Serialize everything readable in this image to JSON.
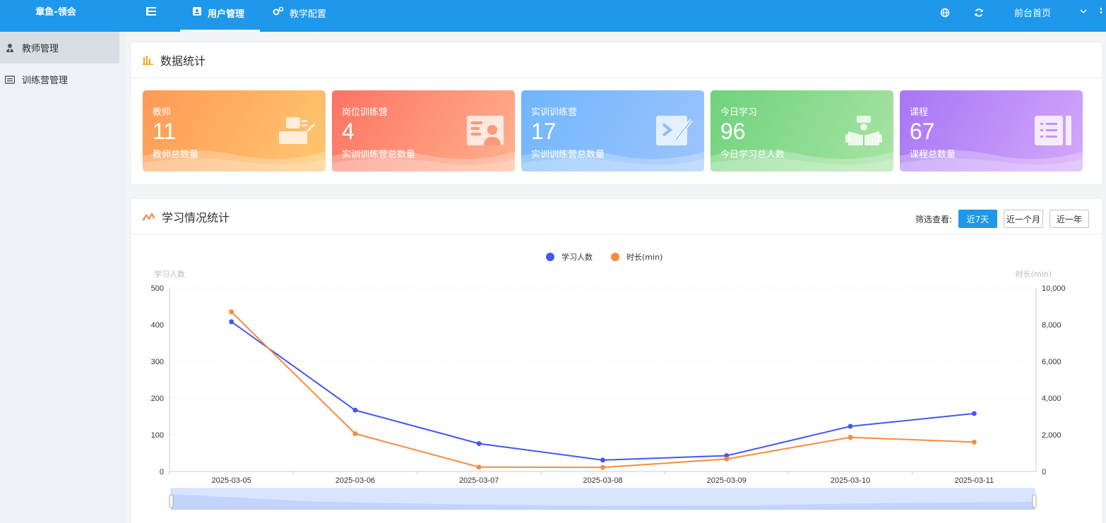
{
  "header": {
    "brand": "章鱼-领会",
    "tabs": [
      {
        "label": "用户管理",
        "active": true
      },
      {
        "label": "教学配置",
        "active": false
      }
    ],
    "home_link": "前台首页"
  },
  "sidebar": {
    "items": [
      {
        "label": "教师管理",
        "icon": "user-tie-icon",
        "active": true
      },
      {
        "label": "训练营管理",
        "icon": "list-card-icon",
        "active": false
      }
    ]
  },
  "stats": {
    "title": "数据统计",
    "cards": [
      {
        "label": "教师",
        "value": "11",
        "sub": "教师总数量",
        "icon": "teacher-desk-icon"
      },
      {
        "label": "岗位训练营",
        "value": "4",
        "sub": "实训训练营总数量",
        "icon": "id-card-icon"
      },
      {
        "label": "实训训练营",
        "value": "17",
        "sub": "实训训练营总数量",
        "icon": "code-pencil-icon"
      },
      {
        "label": "今日学习",
        "value": "96",
        "sub": "今日学习总人数",
        "icon": "reader-book-icon"
      },
      {
        "label": "课程",
        "value": "67",
        "sub": "课程总数量",
        "icon": "course-list-icon"
      }
    ]
  },
  "learning": {
    "title": "学习情况统计",
    "filter_label": "筛选查看:",
    "filters": [
      {
        "label": "近7天",
        "active": true
      },
      {
        "label": "近一个月",
        "active": false
      },
      {
        "label": "近一年",
        "active": false
      }
    ]
  },
  "colors": {
    "primary": "#1e98ea",
    "series_people": "#4358f0",
    "series_minutes": "#f98b3f"
  },
  "chart_data": {
    "type": "line",
    "x": [
      "2025-03-05",
      "2025-03-06",
      "2025-03-07",
      "2025-03-08",
      "2025-03-09",
      "2025-03-10",
      "2025-03-11"
    ],
    "series": [
      {
        "name": "学习人数",
        "axis": "left",
        "values": [
          408,
          167,
          76,
          31,
          43,
          123,
          158
        ]
      },
      {
        "name": "时长(min)",
        "axis": "right",
        "values": [
          8700,
          2060,
          240,
          220,
          680,
          1860,
          1600
        ]
      }
    ],
    "ylabel_left": "学习人数",
    "ylabel_right": "时长(min)",
    "ylim_left": [
      0,
      500
    ],
    "ylim_right": [
      0,
      10000
    ],
    "yticks_left": [
      "0",
      "100",
      "200",
      "300",
      "400",
      "500"
    ],
    "yticks_right": [
      "0",
      "2,000",
      "4,000",
      "6,000",
      "8,000",
      "10,000"
    ],
    "legend": "top-center",
    "grid": true,
    "datazoom": true
  }
}
